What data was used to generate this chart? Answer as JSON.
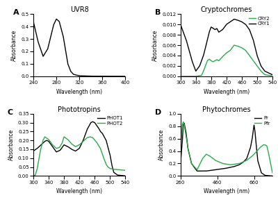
{
  "panel_A": {
    "title": "UVR8",
    "xlabel": "Wavelength (nm)",
    "ylabel": "Absorbance",
    "xlim": [
      240,
      400
    ],
    "ylim": [
      0,
      0.5
    ],
    "yticks": [
      0,
      0.1,
      0.2,
      0.3,
      0.4,
      0.5
    ],
    "xticks": [
      240,
      280,
      320,
      360,
      400
    ],
    "color": "#000000",
    "label": "A"
  },
  "panel_B": {
    "title": "Cryptochromes",
    "xlabel": "Wavelength (nm)",
    "ylabel": "Absorbance",
    "xlim": [
      300,
      540
    ],
    "ylim": [
      0,
      0.012
    ],
    "yticks": [
      0,
      0.002,
      0.004,
      0.006,
      0.008,
      0.01,
      0.012
    ],
    "xticks": [
      300,
      340,
      380,
      420,
      460,
      500,
      540
    ],
    "colors": {
      "CRY1": "#000000",
      "CRY2": "#2aaa4a"
    },
    "label": "B"
  },
  "panel_C": {
    "title": "Phototropins",
    "xlabel": "Wavelength (nm)",
    "ylabel": "Absorbance",
    "xlim": [
      300,
      540
    ],
    "ylim": [
      0,
      0.35
    ],
    "yticks": [
      0,
      0.05,
      0.1,
      0.15,
      0.2,
      0.25,
      0.3,
      0.35
    ],
    "xticks": [
      300,
      340,
      380,
      420,
      460,
      500,
      540
    ],
    "colors": {
      "PHOT1": "#000000",
      "PHOT2": "#2aaa4a"
    },
    "label": "C"
  },
  "panel_D": {
    "title": "Phytochromes",
    "xlabel": "Wavelength (nm)",
    "ylabel": "Absorbance",
    "xlim": [
      260,
      760
    ],
    "ylim": [
      0,
      1
    ],
    "yticks": [
      0,
      0.2,
      0.4,
      0.6,
      0.8,
      1.0
    ],
    "xticks": [
      260,
      460,
      660
    ],
    "colors": {
      "Pr": "#000000",
      "Pfr": "#2aaa4a"
    },
    "label": "D"
  },
  "bg_color": "#ffffff",
  "line_width": 1.0
}
